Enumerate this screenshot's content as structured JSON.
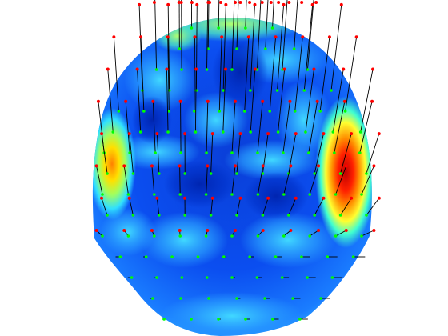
{
  "figure": {
    "background": "#ffffff",
    "surface_colormap": [
      "#000080",
      "#0000ff",
      "#0060ff",
      "#00c0ff",
      "#00ffff",
      "#80ff80",
      "#ffff00",
      "#ff8000",
      "#ff0000",
      "#800000"
    ],
    "stick_color": "#000000",
    "tip_marker_color": "#ff0000",
    "base_marker_color": "#00ff00"
  }
}
